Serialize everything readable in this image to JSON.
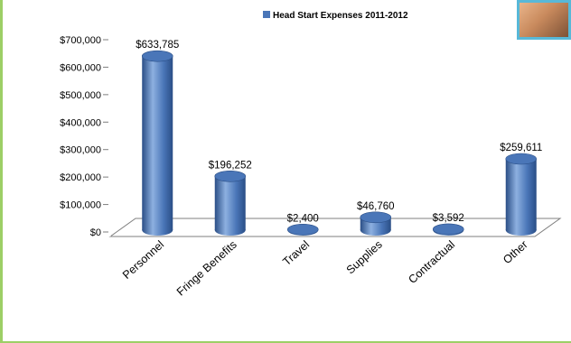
{
  "colors": {
    "bar": "#4a76b8",
    "bar_dark": "#2a4e86",
    "bar_light": "#8db0e0",
    "frame": "#9ccf66",
    "photo_border": "#58b8d8"
  },
  "chart_data": {
    "type": "bar",
    "style": "3d-cylinder",
    "legend": {
      "label": "Head Start Expenses 2011-2012",
      "placement": "top"
    },
    "categories": [
      "Personnel",
      "Fringe Benefits",
      "Travel",
      "Supplies",
      "Contractual",
      "Other"
    ],
    "values": [
      633785,
      196252,
      2400,
      46760,
      3592,
      259611
    ],
    "value_labels": [
      "$633,785",
      "$196,252",
      "$2,400",
      "$46,760",
      "$3,592",
      "$259,611"
    ],
    "y_ticks": [
      "$0",
      "$100,000",
      "$200,000",
      "$300,000",
      "$400,000",
      "$500,000",
      "$600,000",
      "$700,000"
    ],
    "ylim": [
      0,
      700000
    ],
    "grid": false
  }
}
